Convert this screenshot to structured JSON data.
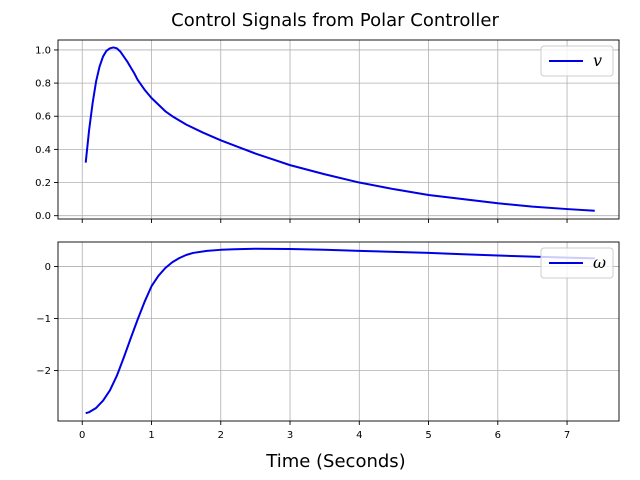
{
  "chart_data": {
    "type": "line",
    "title": "Control Signals from Polar Controller",
    "xlabel": "Time (Seconds)",
    "grid": true,
    "line_color": "#0000e6",
    "xlim": [
      -0.35,
      7.75
    ],
    "x_ticks": [
      0,
      1,
      2,
      3,
      4,
      5,
      6,
      7
    ],
    "x_tick_labels": [
      "0",
      "1",
      "2",
      "3",
      "4",
      "5",
      "6",
      "7"
    ],
    "subplots": [
      {
        "ylabel": "",
        "ylim": [
          -0.02,
          1.06
        ],
        "y_ticks": [
          0.0,
          0.2,
          0.4,
          0.6,
          0.8,
          1.0
        ],
        "y_tick_labels": [
          "0.0",
          "0.2",
          "0.4",
          "0.6",
          "0.8",
          "1.0"
        ],
        "legend_position": "top-right",
        "series": [
          {
            "name": "v",
            "x": [
              0.05,
              0.1,
              0.15,
              0.2,
              0.25,
              0.3,
              0.35,
              0.4,
              0.45,
              0.5,
              0.55,
              0.6,
              0.65,
              0.7,
              0.75,
              0.8,
              0.9,
              1.0,
              1.1,
              1.2,
              1.3,
              1.4,
              1.5,
              1.75,
              2.0,
              2.25,
              2.5,
              2.75,
              3.0,
              3.5,
              4.0,
              4.5,
              5.0,
              5.5,
              6.0,
              6.5,
              7.0,
              7.4
            ],
            "y": [
              0.32,
              0.52,
              0.68,
              0.81,
              0.9,
              0.96,
              0.995,
              1.01,
              1.015,
              1.01,
              0.99,
              0.96,
              0.93,
              0.895,
              0.86,
              0.82,
              0.76,
              0.71,
              0.67,
              0.63,
              0.6,
              0.575,
              0.55,
              0.5,
              0.455,
              0.415,
              0.375,
              0.34,
              0.305,
              0.25,
              0.2,
              0.16,
              0.125,
              0.1,
              0.075,
              0.055,
              0.04,
              0.03
            ]
          }
        ]
      },
      {
        "ylabel": "",
        "ylim": [
          -2.97,
          0.47
        ],
        "y_ticks": [
          -2,
          -1,
          0
        ],
        "y_tick_labels": [
          "−2",
          "−1",
          "0"
        ],
        "legend_position": "top-right",
        "series": [
          {
            "name": "ω",
            "x": [
              0.05,
              0.1,
              0.2,
              0.3,
              0.4,
              0.5,
              0.6,
              0.7,
              0.8,
              0.9,
              1.0,
              1.1,
              1.2,
              1.3,
              1.4,
              1.5,
              1.6,
              1.8,
              2.0,
              2.2,
              2.5,
              3.0,
              3.5,
              4.0,
              4.5,
              5.0,
              5.5,
              6.0,
              6.5,
              7.0,
              7.4
            ],
            "y": [
              -2.82,
              -2.8,
              -2.72,
              -2.58,
              -2.38,
              -2.1,
              -1.75,
              -1.38,
              -1.02,
              -0.68,
              -0.38,
              -0.18,
              -0.03,
              0.08,
              0.16,
              0.22,
              0.26,
              0.3,
              0.32,
              0.33,
              0.34,
              0.335,
              0.32,
              0.3,
              0.28,
              0.26,
              0.235,
              0.21,
              0.19,
              0.17,
              0.155
            ]
          }
        ]
      }
    ]
  }
}
